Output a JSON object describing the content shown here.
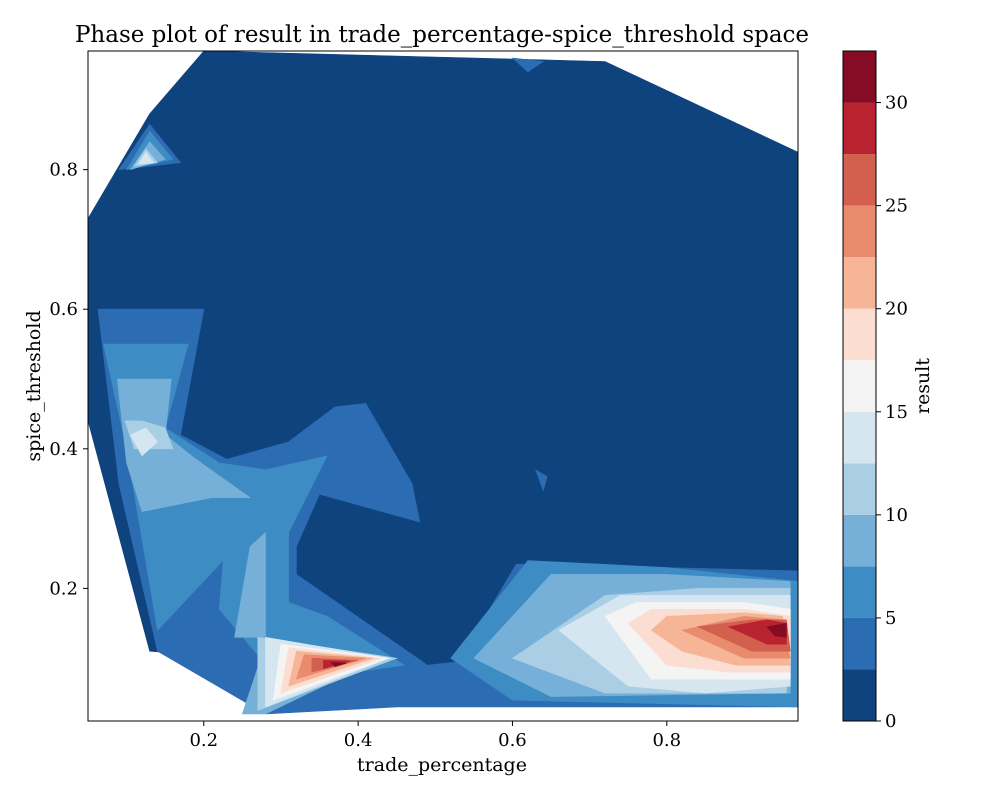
{
  "chart_data": {
    "type": "filled-contour",
    "title": "Phase plot of result in trade_percentage-spice_threshold space",
    "xlabel": "trade_percentage",
    "ylabel": "spice_threshold",
    "colorbar_label": "result",
    "xlim": [
      0.05,
      0.97
    ],
    "ylim": [
      0.01,
      0.97
    ],
    "xticks": [
      0.2,
      0.4,
      0.6,
      0.8
    ],
    "xtick_labels": [
      "0.2",
      "0.4",
      "0.6",
      "0.8"
    ],
    "yticks": [
      0.2,
      0.4,
      0.6,
      0.8
    ],
    "ytick_labels": [
      "0.2",
      "0.4",
      "0.6",
      "0.8"
    ],
    "colorbar_ticks": [
      0,
      5,
      10,
      15,
      20,
      25,
      30
    ],
    "colorbar_tick_labels": [
      "0",
      "5",
      "10",
      "15",
      "20",
      "25",
      "30"
    ],
    "colorbar_range": [
      0,
      32.5
    ],
    "levels": [
      0,
      2.5,
      5,
      7.5,
      10,
      12.5,
      15,
      17.5,
      20,
      22.5,
      25,
      27.5,
      30,
      32.5
    ],
    "colormap": [
      "#0f437e",
      "#2c6cb3",
      "#3d8cc3",
      "#76b0d8",
      "#aacfe5",
      "#d6e6f1",
      "#f4f4f4",
      "#fbddd1",
      "#f6b596",
      "#e98c6d",
      "#d3604e",
      "#b9222f",
      "#860b24"
    ],
    "regions": [
      {
        "level": 0,
        "points": [
          [
            0.05,
            0.73
          ],
          [
            0.13,
            0.88
          ],
          [
            0.2,
            0.97
          ],
          [
            0.72,
            0.955
          ],
          [
            0.97,
            0.825
          ],
          [
            0.97,
            0.2
          ],
          [
            0.48,
            0.08
          ],
          [
            0.13,
            0.11
          ],
          [
            0.05,
            0.44
          ]
        ]
      },
      {
        "level": 1,
        "points": [
          [
            0.063,
            0.6
          ],
          [
            0.2,
            0.6
          ],
          [
            0.17,
            0.42
          ],
          [
            0.23,
            0.385
          ],
          [
            0.31,
            0.41
          ],
          [
            0.37,
            0.46
          ],
          [
            0.41,
            0.465
          ],
          [
            0.47,
            0.35
          ],
          [
            0.48,
            0.295
          ],
          [
            0.35,
            0.335
          ],
          [
            0.32,
            0.26
          ],
          [
            0.32,
            0.22
          ],
          [
            0.49,
            0.09
          ],
          [
            0.53,
            0.095
          ],
          [
            0.605,
            0.235
          ],
          [
            0.8,
            0.23
          ],
          [
            0.97,
            0.225
          ],
          [
            0.97,
            0.03
          ],
          [
            0.45,
            0.03
          ],
          [
            0.28,
            0.02
          ],
          [
            0.14,
            0.11
          ],
          [
            0.09,
            0.35
          ]
        ]
      },
      {
        "level": 1,
        "points": [
          [
            0.6,
            0.96
          ],
          [
            0.64,
            0.955
          ],
          [
            0.62,
            0.94
          ]
        ]
      },
      {
        "level": 1,
        "points": [
          [
            0.63,
            0.37
          ],
          [
            0.645,
            0.36
          ],
          [
            0.64,
            0.34
          ]
        ]
      },
      {
        "level": 1,
        "points": [
          [
            0.09,
            0.8
          ],
          [
            0.13,
            0.865
          ],
          [
            0.17,
            0.81
          ]
        ]
      },
      {
        "level": 2,
        "points": [
          [
            0.07,
            0.55
          ],
          [
            0.18,
            0.55
          ],
          [
            0.15,
            0.43
          ],
          [
            0.22,
            0.38
          ],
          [
            0.28,
            0.37
          ],
          [
            0.36,
            0.39
          ],
          [
            0.31,
            0.28
          ],
          [
            0.31,
            0.18
          ],
          [
            0.36,
            0.16
          ],
          [
            0.46,
            0.09
          ],
          [
            0.3,
            0.065
          ],
          [
            0.22,
            0.17
          ],
          [
            0.225,
            0.24
          ],
          [
            0.14,
            0.14
          ],
          [
            0.1,
            0.4
          ]
        ]
      },
      {
        "level": 2,
        "points": [
          [
            0.52,
            0.1
          ],
          [
            0.62,
            0.24
          ],
          [
            0.8,
            0.23
          ],
          [
            0.97,
            0.21
          ],
          [
            0.97,
            0.03
          ],
          [
            0.6,
            0.04
          ]
        ]
      },
      {
        "level": 2,
        "points": [
          [
            0.1,
            0.8
          ],
          [
            0.13,
            0.855
          ],
          [
            0.16,
            0.815
          ]
        ]
      },
      {
        "level": 3,
        "points": [
          [
            0.088,
            0.5
          ],
          [
            0.158,
            0.5
          ],
          [
            0.15,
            0.42
          ],
          [
            0.19,
            0.385
          ],
          [
            0.26,
            0.33
          ],
          [
            0.21,
            0.33
          ],
          [
            0.12,
            0.31
          ],
          [
            0.1,
            0.38
          ]
        ]
      },
      {
        "level": 3,
        "points": [
          [
            0.55,
            0.1
          ],
          [
            0.65,
            0.22
          ],
          [
            0.8,
            0.22
          ],
          [
            0.96,
            0.21
          ],
          [
            0.96,
            0.05
          ],
          [
            0.65,
            0.045
          ]
        ]
      },
      {
        "level": 3,
        "points": [
          [
            0.26,
            0.26
          ],
          [
            0.28,
            0.28
          ],
          [
            0.28,
            0.13
          ],
          [
            0.24,
            0.13
          ]
        ]
      },
      {
        "level": 3,
        "points": [
          [
            0.28,
            0.12
          ],
          [
            0.43,
            0.1
          ],
          [
            0.28,
            0.02
          ],
          [
            0.25,
            0.02
          ]
        ]
      },
      {
        "level": 3,
        "points": [
          [
            0.105,
            0.8
          ],
          [
            0.13,
            0.84
          ],
          [
            0.15,
            0.815
          ]
        ]
      },
      {
        "level": 4,
        "points": [
          [
            0.098,
            0.44
          ],
          [
            0.11,
            0.4
          ],
          [
            0.16,
            0.4
          ],
          [
            0.15,
            0.43
          ],
          [
            0.12,
            0.44
          ]
        ]
      },
      {
        "level": 4,
        "points": [
          [
            0.6,
            0.1
          ],
          [
            0.72,
            0.19
          ],
          [
            0.84,
            0.2
          ],
          [
            0.96,
            0.2
          ],
          [
            0.955,
            0.05
          ],
          [
            0.72,
            0.05
          ]
        ]
      },
      {
        "level": 4,
        "points": [
          [
            0.27,
            0.13
          ],
          [
            0.45,
            0.1
          ],
          [
            0.27,
            0.025
          ]
        ]
      },
      {
        "level": 4,
        "points": [
          [
            0.11,
            0.805
          ],
          [
            0.125,
            0.83
          ],
          [
            0.14,
            0.81
          ]
        ]
      },
      {
        "level": 5,
        "points": [
          [
            0.105,
            0.42
          ],
          [
            0.125,
            0.43
          ],
          [
            0.14,
            0.41
          ],
          [
            0.12,
            0.39
          ]
        ]
      },
      {
        "level": 5,
        "points": [
          [
            0.66,
            0.14
          ],
          [
            0.74,
            0.19
          ],
          [
            0.87,
            0.19
          ],
          [
            0.96,
            0.19
          ],
          [
            0.96,
            0.06
          ],
          [
            0.85,
            0.05
          ],
          [
            0.75,
            0.06
          ]
        ]
      },
      {
        "level": 5,
        "points": [
          [
            0.28,
            0.13
          ],
          [
            0.44,
            0.1
          ],
          [
            0.28,
            0.03
          ]
        ]
      },
      {
        "level": 5,
        "points": [
          [
            0.115,
            0.808
          ],
          [
            0.125,
            0.825
          ],
          [
            0.135,
            0.81
          ]
        ]
      },
      {
        "level": 6,
        "points": [
          [
            0.72,
            0.16
          ],
          [
            0.76,
            0.18
          ],
          [
            0.9,
            0.18
          ],
          [
            0.96,
            0.17
          ],
          [
            0.96,
            0.07
          ],
          [
            0.87,
            0.07
          ],
          [
            0.78,
            0.07
          ]
        ]
      },
      {
        "level": 6,
        "points": [
          [
            0.3,
            0.12
          ],
          [
            0.44,
            0.1
          ],
          [
            0.29,
            0.04
          ]
        ]
      },
      {
        "level": 7,
        "points": [
          [
            0.75,
            0.15
          ],
          [
            0.78,
            0.17
          ],
          [
            0.9,
            0.17
          ],
          [
            0.96,
            0.16
          ],
          [
            0.96,
            0.08
          ],
          [
            0.88,
            0.08
          ],
          [
            0.8,
            0.09
          ]
        ]
      },
      {
        "level": 7,
        "points": [
          [
            0.31,
            0.115
          ],
          [
            0.43,
            0.1
          ],
          [
            0.3,
            0.05
          ]
        ]
      },
      {
        "level": 8,
        "points": [
          [
            0.78,
            0.14
          ],
          [
            0.8,
            0.16
          ],
          [
            0.9,
            0.165
          ],
          [
            0.95,
            0.16
          ],
          [
            0.96,
            0.09
          ],
          [
            0.89,
            0.09
          ],
          [
            0.82,
            0.11
          ]
        ]
      },
      {
        "level": 8,
        "points": [
          [
            0.32,
            0.11
          ],
          [
            0.42,
            0.1
          ],
          [
            0.31,
            0.06
          ]
        ]
      },
      {
        "level": 9,
        "points": [
          [
            0.82,
            0.14
          ],
          [
            0.9,
            0.16
          ],
          [
            0.95,
            0.155
          ],
          [
            0.96,
            0.1
          ],
          [
            0.9,
            0.1
          ]
        ]
      },
      {
        "level": 9,
        "points": [
          [
            0.33,
            0.105
          ],
          [
            0.41,
            0.1
          ],
          [
            0.32,
            0.07
          ]
        ]
      },
      {
        "level": 10,
        "points": [
          [
            0.84,
            0.145
          ],
          [
            0.91,
            0.155
          ],
          [
            0.955,
            0.155
          ],
          [
            0.96,
            0.11
          ],
          [
            0.91,
            0.11
          ]
        ]
      },
      {
        "level": 10,
        "points": [
          [
            0.34,
            0.1
          ],
          [
            0.4,
            0.097
          ],
          [
            0.34,
            0.08
          ]
        ]
      },
      {
        "level": 11,
        "points": [
          [
            0.88,
            0.145
          ],
          [
            0.93,
            0.155
          ],
          [
            0.955,
            0.15
          ],
          [
            0.955,
            0.12
          ],
          [
            0.93,
            0.12
          ]
        ]
      },
      {
        "level": 11,
        "points": [
          [
            0.355,
            0.097
          ],
          [
            0.39,
            0.096
          ],
          [
            0.355,
            0.085
          ]
        ]
      },
      {
        "level": 12,
        "points": [
          [
            0.93,
            0.145
          ],
          [
            0.955,
            0.15
          ],
          [
            0.955,
            0.13
          ],
          [
            0.94,
            0.132
          ]
        ]
      },
      {
        "level": 12,
        "points": [
          [
            0.365,
            0.094
          ],
          [
            0.385,
            0.093
          ],
          [
            0.37,
            0.088
          ]
        ]
      }
    ]
  }
}
